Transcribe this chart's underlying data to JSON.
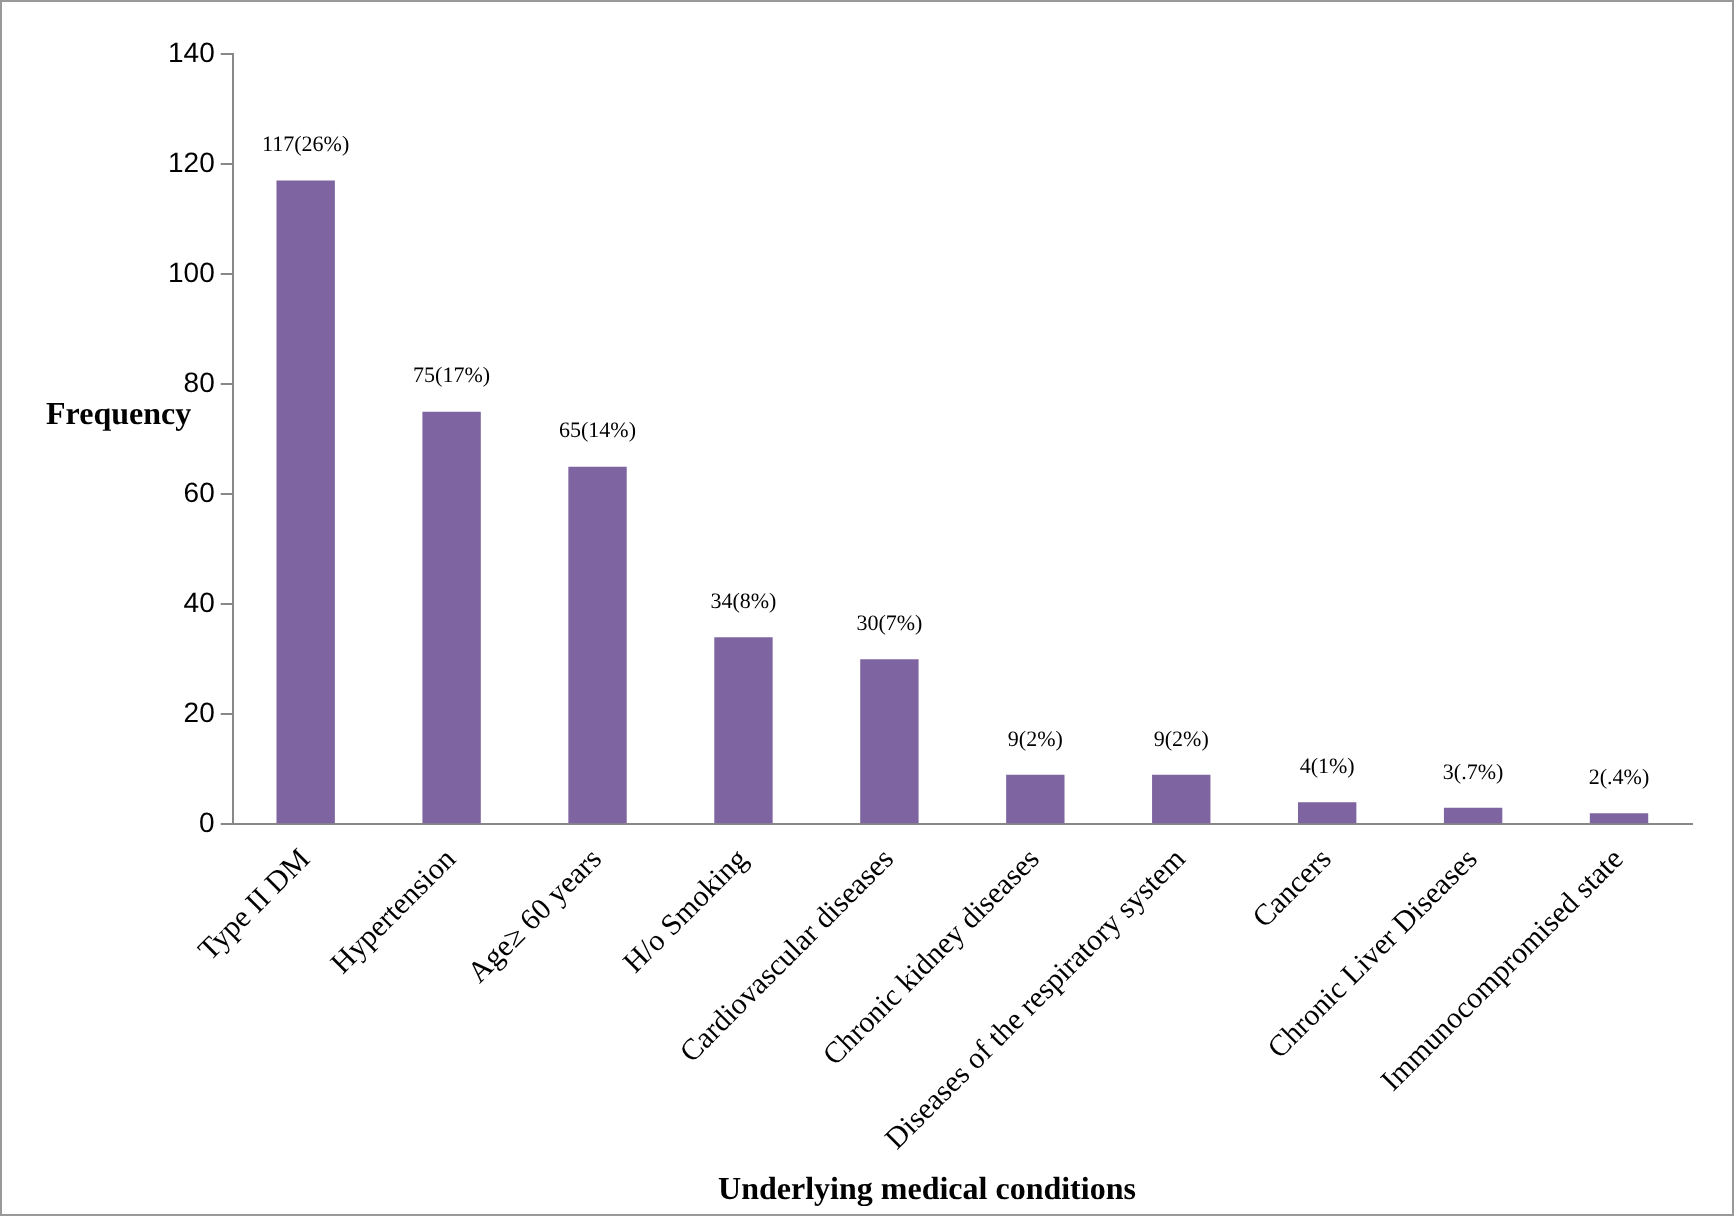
{
  "chart_data": {
    "type": "bar",
    "xlabel": "Underlying medical conditions",
    "ylabel": "Frequency",
    "categories": [
      "Type II DM",
      "Hypertension",
      "Age≥ 60 years",
      "H/o Smoking",
      "Cardiovascular diseases",
      "Chronic kidney diseases",
      "Diseases of the respiratory system",
      "Cancers",
      "Chronic Liver Diseases",
      "Immunocompromised state"
    ],
    "values": [
      117,
      75,
      65,
      34,
      30,
      9,
      9,
      4,
      3,
      2
    ],
    "value_labels": [
      "117(26%)",
      "75(17%)",
      "65(14%)",
      "34(8%)",
      "30(7%)",
      "9(2%)",
      "9(2%)",
      "4(1%)",
      "3(.7%)",
      "2(.4%)"
    ],
    "color": "#7e64a0",
    "ylim": [
      0,
      140
    ],
    "yticks": [
      0,
      20,
      40,
      60,
      80,
      100,
      120,
      140
    ],
    "grid": false,
    "legend": false
  }
}
